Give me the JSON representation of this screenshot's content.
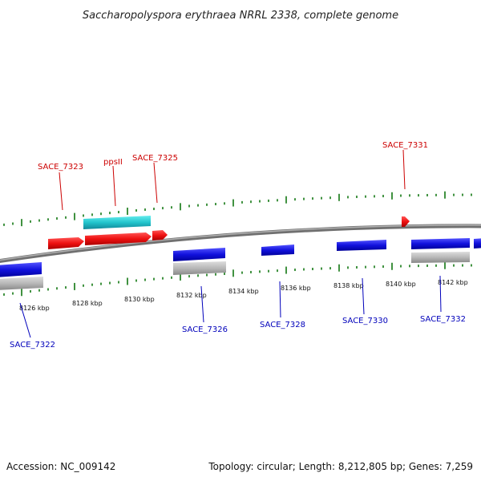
{
  "title": "Saccharopolyspora erythraea NRRL 2338, complete genome",
  "footer": {
    "accession": "Accession: NC_009142",
    "summary": "Topology: circular; Length: 8,212,805 bp; Genes: 7,259"
  },
  "colors": {
    "backbone": "#8a8a8a",
    "forward_cds": "#ee1111",
    "reverse_cds": "#1111dd",
    "forward_rna": "#22c4cc",
    "reverse_rna": "#b8b8b8",
    "ticks": "#117711",
    "forward_label": "#cc0000",
    "reverse_label": "#0000bb"
  },
  "ticks": [
    {
      "label": "8126 kbp"
    },
    {
      "label": "8128 kbp"
    },
    {
      "label": "8130 kbp"
    },
    {
      "label": "8132 kbp"
    },
    {
      "label": "8134 kbp"
    },
    {
      "label": "8136 kbp"
    },
    {
      "label": "8138 kbp"
    },
    {
      "label": "8140 kbp"
    },
    {
      "label": "8142 kbp"
    }
  ],
  "forward_labels": [
    "SACE_7323",
    "ppsII",
    "SACE_7325",
    "SACE_7331"
  ],
  "reverse_labels": [
    "SACE_7322",
    "SACE_7326",
    "SACE_7328",
    "SACE_7330",
    "SACE_7332"
  ]
}
